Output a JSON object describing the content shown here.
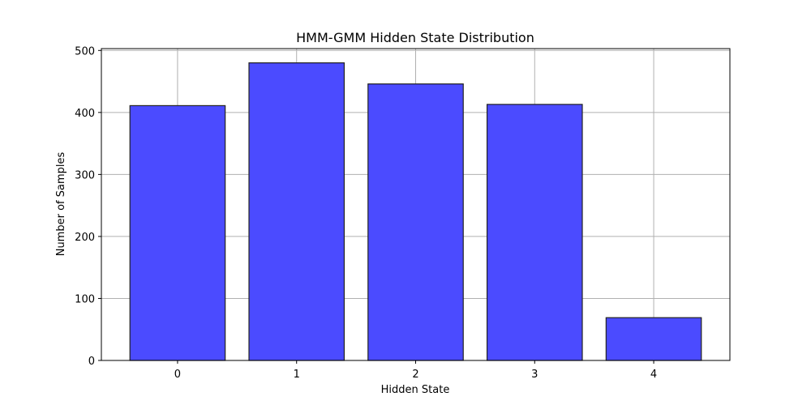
{
  "chart_data": {
    "type": "bar",
    "title": "HMM-GMM Hidden State Distribution",
    "xlabel": "Hidden State",
    "ylabel": "Number of Samples",
    "categories": [
      "0",
      "1",
      "2",
      "3",
      "4"
    ],
    "values": [
      411,
      480,
      446,
      413,
      69
    ],
    "ylim": [
      0,
      500
    ],
    "yticks": [
      0,
      100,
      200,
      300,
      400,
      500
    ],
    "grid": true,
    "bar_color": "#4b4bff",
    "bar_edge_color": "#222222"
  }
}
